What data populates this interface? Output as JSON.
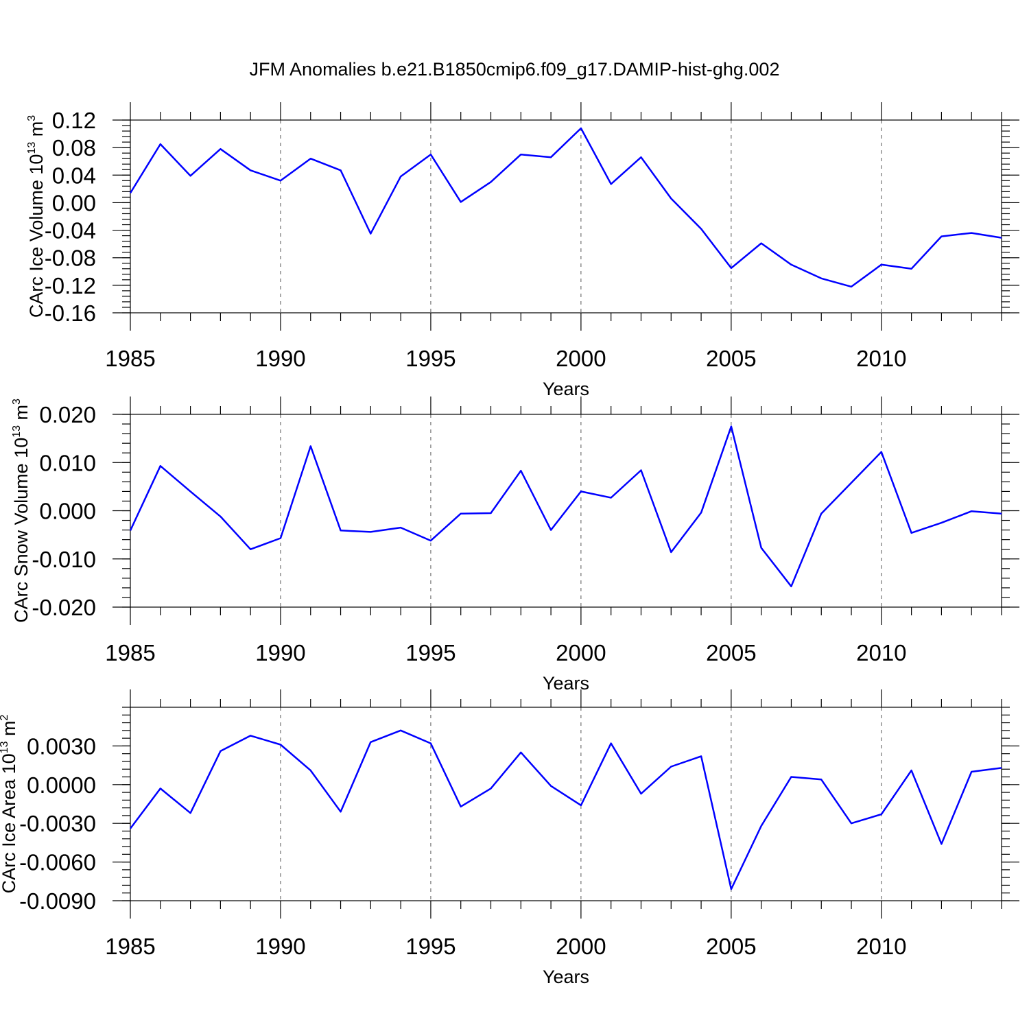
{
  "title": "JFM Anomalies b.e21.B1850cmip6.f09_g17.DAMIP-hist-ghg.002",
  "chart_data": [
    {
      "type": "line",
      "name": "ice-volume",
      "title": "JFM Anomalies b.e21.B1850cmip6.f09_g17.DAMIP-hist-ghg.002",
      "xlabel": "Years",
      "ylabel_main": "CArc Ice Volume 10",
      "ylabel_exp": "13",
      "ylabel_unit": "m",
      "ylabel_unit_exp": "3",
      "x": [
        1985,
        1986,
        1987,
        1988,
        1989,
        1990,
        1991,
        1992,
        1993,
        1994,
        1995,
        1996,
        1997,
        1998,
        1999,
        2000,
        2001,
        2002,
        2003,
        2004,
        2005,
        2006,
        2007,
        2008,
        2009,
        2010,
        2011,
        2012,
        2013,
        2014
      ],
      "values": [
        0.014,
        0.085,
        0.039,
        0.078,
        0.047,
        0.032,
        0.064,
        0.047,
        -0.045,
        0.038,
        0.07,
        0.001,
        0.03,
        0.07,
        0.066,
        0.108,
        0.027,
        0.066,
        0.006,
        -0.038,
        -0.095,
        -0.059,
        -0.09,
        -0.11,
        -0.122,
        -0.09,
        -0.096,
        -0.049,
        -0.044,
        -0.051
      ],
      "xlim": [
        1985,
        2014
      ],
      "ylim": [
        -0.16,
        0.12
      ],
      "xticks_major": [
        1985,
        1990,
        1995,
        2000,
        2005,
        2010
      ],
      "xtick_labels": [
        "1985",
        "1990",
        "1995",
        "2000",
        "2005",
        "2010"
      ],
      "yticks_major": [
        0.12,
        0.08,
        0.04,
        0.0,
        -0.04,
        -0.08,
        -0.12,
        -0.16
      ],
      "ytick_labels": [
        "0.12",
        "0.08",
        "0.04",
        "0.00",
        "-0.04",
        "-0.08",
        "-0.12",
        "-0.16"
      ],
      "yminor_step": 0.008,
      "color": "#0000ff"
    },
    {
      "type": "line",
      "name": "snow-volume",
      "xlabel": "Years",
      "ylabel_main": "CArc Snow Volume 10",
      "ylabel_exp": "13",
      "ylabel_unit": "m",
      "ylabel_unit_exp": "3",
      "x": [
        1985,
        1986,
        1987,
        1988,
        1989,
        1990,
        1991,
        1992,
        1993,
        1994,
        1995,
        1996,
        1997,
        1998,
        1999,
        2000,
        2001,
        2002,
        2003,
        2004,
        2005,
        2006,
        2007,
        2008,
        2009,
        2010,
        2011,
        2012,
        2013,
        2014
      ],
      "values": [
        -0.0041,
        0.0093,
        0.004,
        -0.0012,
        -0.008,
        -0.0057,
        0.0134,
        -0.0041,
        -0.0044,
        -0.0035,
        -0.0062,
        -0.0006,
        -0.0005,
        0.0083,
        -0.004,
        0.004,
        0.0027,
        0.0084,
        -0.0086,
        -0.0004,
        0.0175,
        -0.0077,
        -0.0157,
        -0.0006,
        0.0058,
        0.0122,
        -0.0046,
        -0.0025,
        -0.0001,
        -0.0006
      ],
      "xlim": [
        1985,
        2014
      ],
      "ylim": [
        -0.02,
        0.02
      ],
      "xticks_major": [
        1985,
        1990,
        1995,
        2000,
        2005,
        2010
      ],
      "xtick_labels": [
        "1985",
        "1990",
        "1995",
        "2000",
        "2005",
        "2010"
      ],
      "yticks_major": [
        0.02,
        0.01,
        0.0,
        -0.01,
        -0.02
      ],
      "ytick_labels": [
        "0.020",
        "0.010",
        "0.000",
        "-0.010",
        "-0.020"
      ],
      "yminor_step": 0.002,
      "color": "#0000ff"
    },
    {
      "type": "line",
      "name": "ice-area",
      "xlabel": "Years",
      "ylabel_main": "CArc Ice Area 10",
      "ylabel_exp": "13",
      "ylabel_unit": "m",
      "ylabel_unit_exp": "2",
      "x": [
        1985,
        1986,
        1987,
        1988,
        1989,
        1990,
        1991,
        1992,
        1993,
        1994,
        1995,
        1996,
        1997,
        1998,
        1999,
        2000,
        2001,
        2002,
        2003,
        2004,
        2005,
        2006,
        2007,
        2008,
        2009,
        2010,
        2011,
        2012,
        2013,
        2014
      ],
      "values": [
        -0.0034,
        -0.0003,
        -0.0022,
        0.0026,
        0.0038,
        0.0031,
        0.0011,
        -0.0021,
        0.0033,
        0.0042,
        0.0032,
        -0.0017,
        -0.0003,
        0.0025,
        -0.0001,
        -0.0016,
        0.0032,
        -0.0007,
        0.0014,
        0.0022,
        -0.0081,
        -0.0032,
        0.0006,
        0.0004,
        -0.003,
        -0.0023,
        0.0011,
        -0.0046,
        0.001,
        0.0013
      ],
      "xlim": [
        1985,
        2014
      ],
      "ylim": [
        -0.009,
        0.006
      ],
      "xticks_major": [
        1985,
        1990,
        1995,
        2000,
        2005,
        2010
      ],
      "xtick_labels": [
        "1985",
        "1990",
        "1995",
        "2000",
        "2005",
        "2010"
      ],
      "yticks_major": [
        0.003,
        0.0,
        -0.003,
        -0.006,
        -0.009
      ],
      "ytick_labels": [
        "0.0030",
        "0.0000",
        "-0.0030",
        "-0.0060",
        "-0.0090"
      ],
      "yminor_step": 0.0006,
      "color": "#0000ff"
    }
  ]
}
